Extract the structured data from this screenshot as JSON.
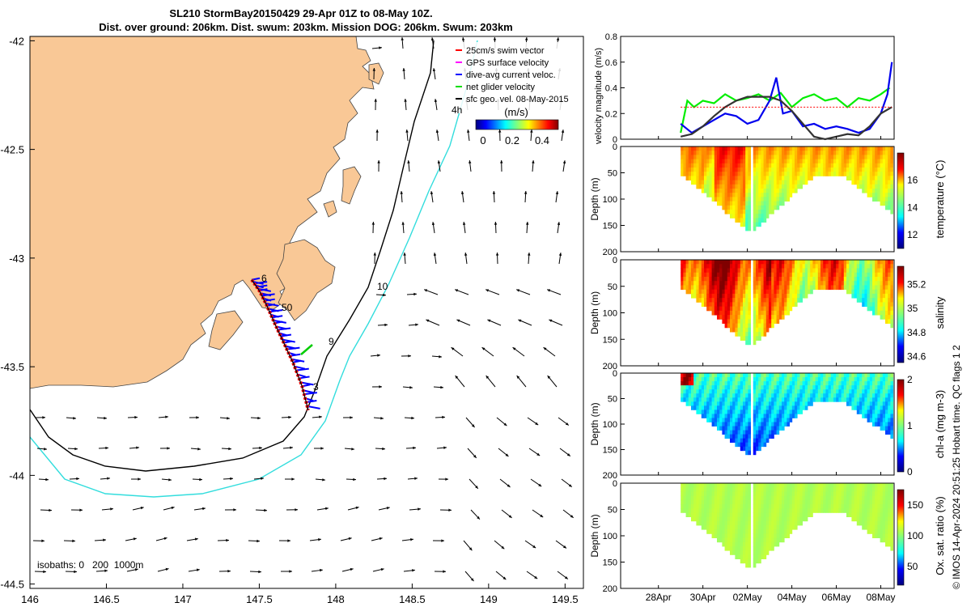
{
  "title": {
    "line1": "SL210 StormBay20150429 29-Apr 01Z to 08-May 10Z.",
    "line2": "Dist. over ground: 206km. Dist. swum: 203km. Mission DOG: 206km. Swum: 203km"
  },
  "map": {
    "legend": [
      {
        "label": "25cm/s swim vector",
        "color": "#ff0000"
      },
      {
        "label": "GPS surface velocity",
        "color": "#ff00ff"
      },
      {
        "label": "dive-avg current veloc.",
        "color": "#0000ff"
      },
      {
        "label": "net glider velocity",
        "color": "#00dd00"
      },
      {
        "label": "sfc geo. vel. 08-May-2015",
        "color": "#000000"
      }
    ],
    "hour_label": "4h",
    "colorbar_title": "(m/s)",
    "colorbar_ticks": [
      "0",
      "0.2",
      "0.4"
    ],
    "isobath_note": "isobaths: 0   200  1000m",
    "labels": {
      "contour_10": "10",
      "n6": "6",
      "n50": "50",
      "n9": "9",
      "n3": "3"
    },
    "colors": {
      "land": "#f9c896",
      "contour_black": "#000000",
      "contour_cyan": "#33dddd",
      "glider_blue": "#0000ff",
      "glider_red": "#ff0000"
    }
  },
  "chart_data": [
    {
      "type": "line",
      "name": "map",
      "xlim": [
        146.0,
        149.62
      ],
      "ylim": [
        -44.52,
        -41.98
      ],
      "xticks": [
        "146",
        "146.5",
        "147",
        "147.5",
        "148",
        "148.5",
        "149",
        "149.5"
      ],
      "yticks": [
        "-42",
        "-42.5",
        "-43",
        "-43.5",
        "-44",
        "-44.5"
      ],
      "glider_track": {
        "lon": [
          147.45,
          147.5,
          147.55,
          147.6,
          147.66,
          147.72,
          147.78,
          147.82
        ],
        "lat": [
          -43.1,
          -43.15,
          -43.22,
          -43.3,
          -43.39,
          -43.48,
          -43.59,
          -43.7
        ]
      }
    },
    {
      "type": "line",
      "name": "velocity",
      "ylabel": "velocity magnitude (m/s)",
      "ylim": [
        0,
        0.8
      ],
      "yticks": [
        "0",
        "0.2",
        "0.4",
        "0.6",
        "0.8"
      ],
      "x_day_range": [
        26.3,
        38.6
      ],
      "series": [
        {
          "color": "#00ee00",
          "x": [
            29.0,
            29.3,
            29.6,
            30.0,
            30.5,
            31.0,
            31.5,
            32.0,
            32.5,
            33.0,
            33.5,
            34.0,
            34.5,
            35.0,
            35.5,
            36.0,
            36.5,
            37.0,
            37.5,
            38.0,
            38.4
          ],
          "y": [
            0.05,
            0.3,
            0.25,
            0.3,
            0.28,
            0.35,
            0.3,
            0.32,
            0.35,
            0.3,
            0.36,
            0.25,
            0.32,
            0.35,
            0.3,
            0.32,
            0.25,
            0.32,
            0.3,
            0.35,
            0.4
          ]
        },
        {
          "color": "#0000ee",
          "x": [
            29.0,
            29.5,
            30.0,
            30.5,
            31.0,
            31.5,
            32.0,
            32.5,
            33.0,
            33.3,
            33.6,
            34.0,
            34.5,
            35.0,
            35.5,
            36.0,
            36.5,
            37.0,
            37.5,
            38.0,
            38.3,
            38.5
          ],
          "y": [
            0.12,
            0.05,
            0.1,
            0.15,
            0.2,
            0.18,
            0.12,
            0.15,
            0.3,
            0.48,
            0.2,
            0.22,
            0.1,
            0.12,
            0.08,
            0.1,
            0.08,
            0.05,
            0.08,
            0.2,
            0.35,
            0.6
          ]
        },
        {
          "color": "#333333",
          "x": [
            29.0,
            29.5,
            30.0,
            30.5,
            31.0,
            31.5,
            32.0,
            32.5,
            33.0,
            33.5,
            34.0,
            34.5,
            35.0,
            35.5,
            36.0,
            36.5,
            37.0,
            37.5,
            38.0,
            38.5
          ],
          "y": [
            0.02,
            0.04,
            0.1,
            0.18,
            0.25,
            0.3,
            0.33,
            0.33,
            0.33,
            0.3,
            0.22,
            0.12,
            0.02,
            0.0,
            0.02,
            0.04,
            0.03,
            0.1,
            0.2,
            0.25
          ]
        },
        {
          "color": "#ff0000",
          "x": [
            29.0,
            38.5
          ],
          "y": [
            0.25,
            0.25
          ]
        }
      ]
    },
    {
      "type": "heatmap",
      "name": "temperature",
      "ylabel": "Depth (m)",
      "cblabel": "temperature (°C)",
      "ylim": [
        200,
        0
      ],
      "yticks": [
        "0",
        "50",
        "100",
        "150",
        "200"
      ],
      "cbticks": [
        "12",
        "14",
        "16"
      ],
      "crange": [
        11,
        18
      ]
    },
    {
      "type": "heatmap",
      "name": "salinity",
      "ylabel": "Depth (m)",
      "cblabel": "salinity",
      "ylim": [
        200,
        0
      ],
      "yticks": [
        "0",
        "50",
        "100",
        "150",
        "200"
      ],
      "cbticks": [
        "34.6",
        "34.8",
        "35",
        "35.2"
      ],
      "crange": [
        34.55,
        35.35
      ]
    },
    {
      "type": "heatmap",
      "name": "chl-a",
      "ylabel": "Depth (m)",
      "cblabel": "chl-a (mg m-3)",
      "ylim": [
        200,
        0
      ],
      "yticks": [
        "0",
        "50",
        "100",
        "150",
        "200"
      ],
      "cbticks": [
        "0",
        "1",
        "2"
      ],
      "crange": [
        0,
        2
      ]
    },
    {
      "type": "heatmap",
      "name": "oxygen",
      "ylabel": "Depth (m)",
      "cblabel": "Ox. sat. ratio (%)",
      "ylim": [
        200,
        0
      ],
      "yticks": [
        "0",
        "50",
        "100",
        "150",
        "200"
      ],
      "cbticks": [
        "50",
        "100",
        "150"
      ],
      "crange": [
        20,
        175
      ]
    }
  ],
  "time_axis": {
    "ticks": [
      "28Apr",
      "30Apr",
      "02May",
      "04May",
      "06May",
      "08May"
    ],
    "days": [
      28,
      30,
      32,
      34,
      36,
      38
    ]
  },
  "side_note": "© IMOS 14-Apr-2024 20:51:25 Hobart time. QC flags 1  2"
}
